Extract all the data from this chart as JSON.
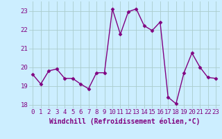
{
  "x": [
    0,
    1,
    2,
    3,
    4,
    5,
    6,
    7,
    8,
    9,
    10,
    11,
    12,
    13,
    14,
    15,
    16,
    17,
    18,
    19,
    20,
    21,
    22,
    23
  ],
  "y": [
    19.6,
    19.1,
    19.8,
    19.9,
    19.4,
    19.4,
    19.1,
    18.85,
    19.7,
    19.7,
    23.1,
    21.75,
    22.95,
    23.1,
    22.2,
    21.95,
    22.4,
    18.4,
    18.05,
    19.7,
    20.75,
    20.0,
    19.45,
    19.4
  ],
  "line_color": "#800080",
  "marker": "D",
  "marker_size": 2.5,
  "linewidth": 1.0,
  "bg_color": "#cceeff",
  "grid_color": "#aacccc",
  "xlabel": "Windchill (Refroidissement éolien,°C)",
  "xlabel_fontsize": 7,
  "tick_fontsize": 6.5,
  "ylim": [
    17.8,
    23.5
  ],
  "xlim": [
    -0.5,
    23.5
  ],
  "yticks": [
    18,
    19,
    20,
    21,
    22,
    23
  ],
  "xticks": [
    0,
    1,
    2,
    3,
    4,
    5,
    6,
    7,
    8,
    9,
    10,
    11,
    12,
    13,
    14,
    15,
    16,
    17,
    18,
    19,
    20,
    21,
    22,
    23
  ]
}
